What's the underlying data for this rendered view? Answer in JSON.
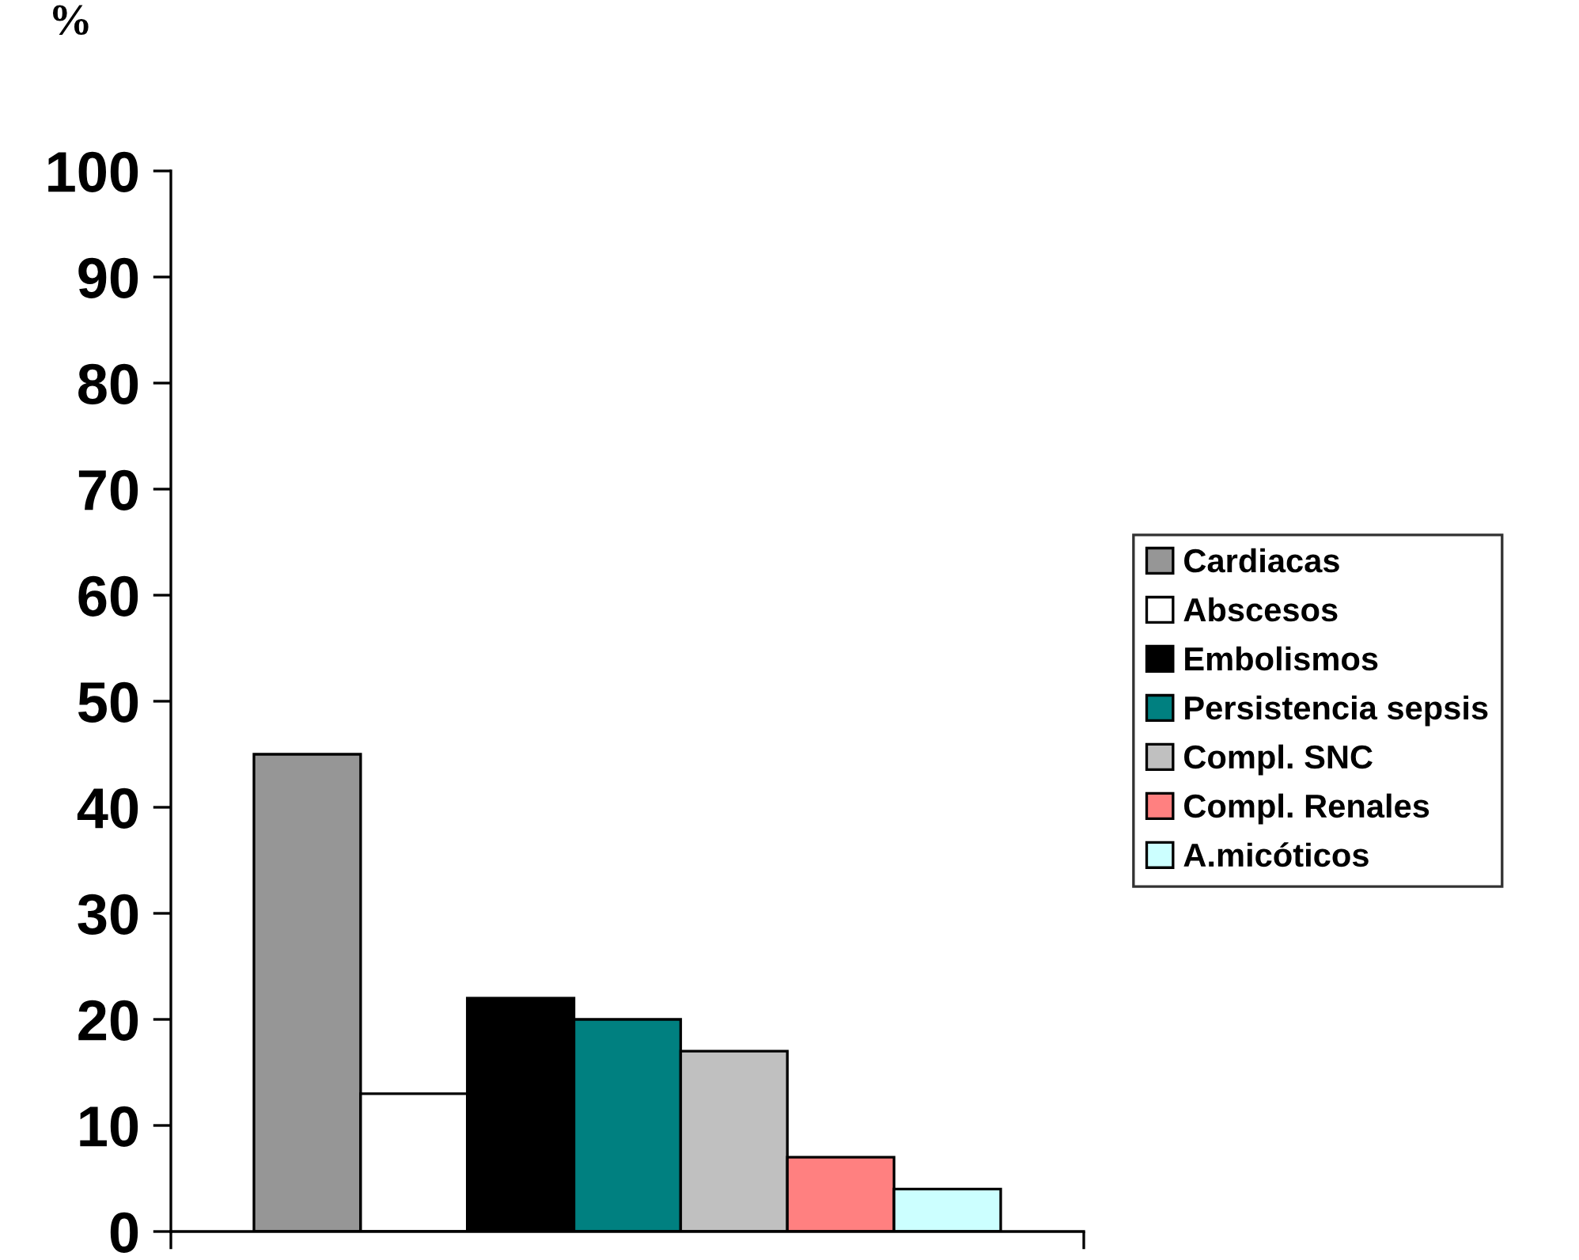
{
  "chart_data": {
    "type": "bar",
    "ylabel": "%",
    "categories": [
      null
    ],
    "series": [
      {
        "name": "Cardiacas",
        "color": "#969696",
        "values": [
          45
        ]
      },
      {
        "name": "Abscesos",
        "color": "#ffffff",
        "values": [
          13
        ]
      },
      {
        "name": "Embolismos",
        "color": "#000000",
        "values": [
          22
        ]
      },
      {
        "name": "Persistencia sepsis",
        "color": "#008080",
        "values": [
          20
        ]
      },
      {
        "name": "Compl. SNC",
        "color": "#c0c0c0",
        "values": [
          17
        ]
      },
      {
        "name": "Compl. Renales",
        "color": "#ff8080",
        "values": [
          7
        ]
      },
      {
        "name": "A.micóticos",
        "color": "#ccffff",
        "values": [
          4
        ]
      }
    ],
    "ylim": [
      0,
      100
    ],
    "yticks": [
      0,
      10,
      20,
      30,
      40,
      50,
      60,
      70,
      80,
      90,
      100
    ],
    "grid": false,
    "legend": "right"
  }
}
